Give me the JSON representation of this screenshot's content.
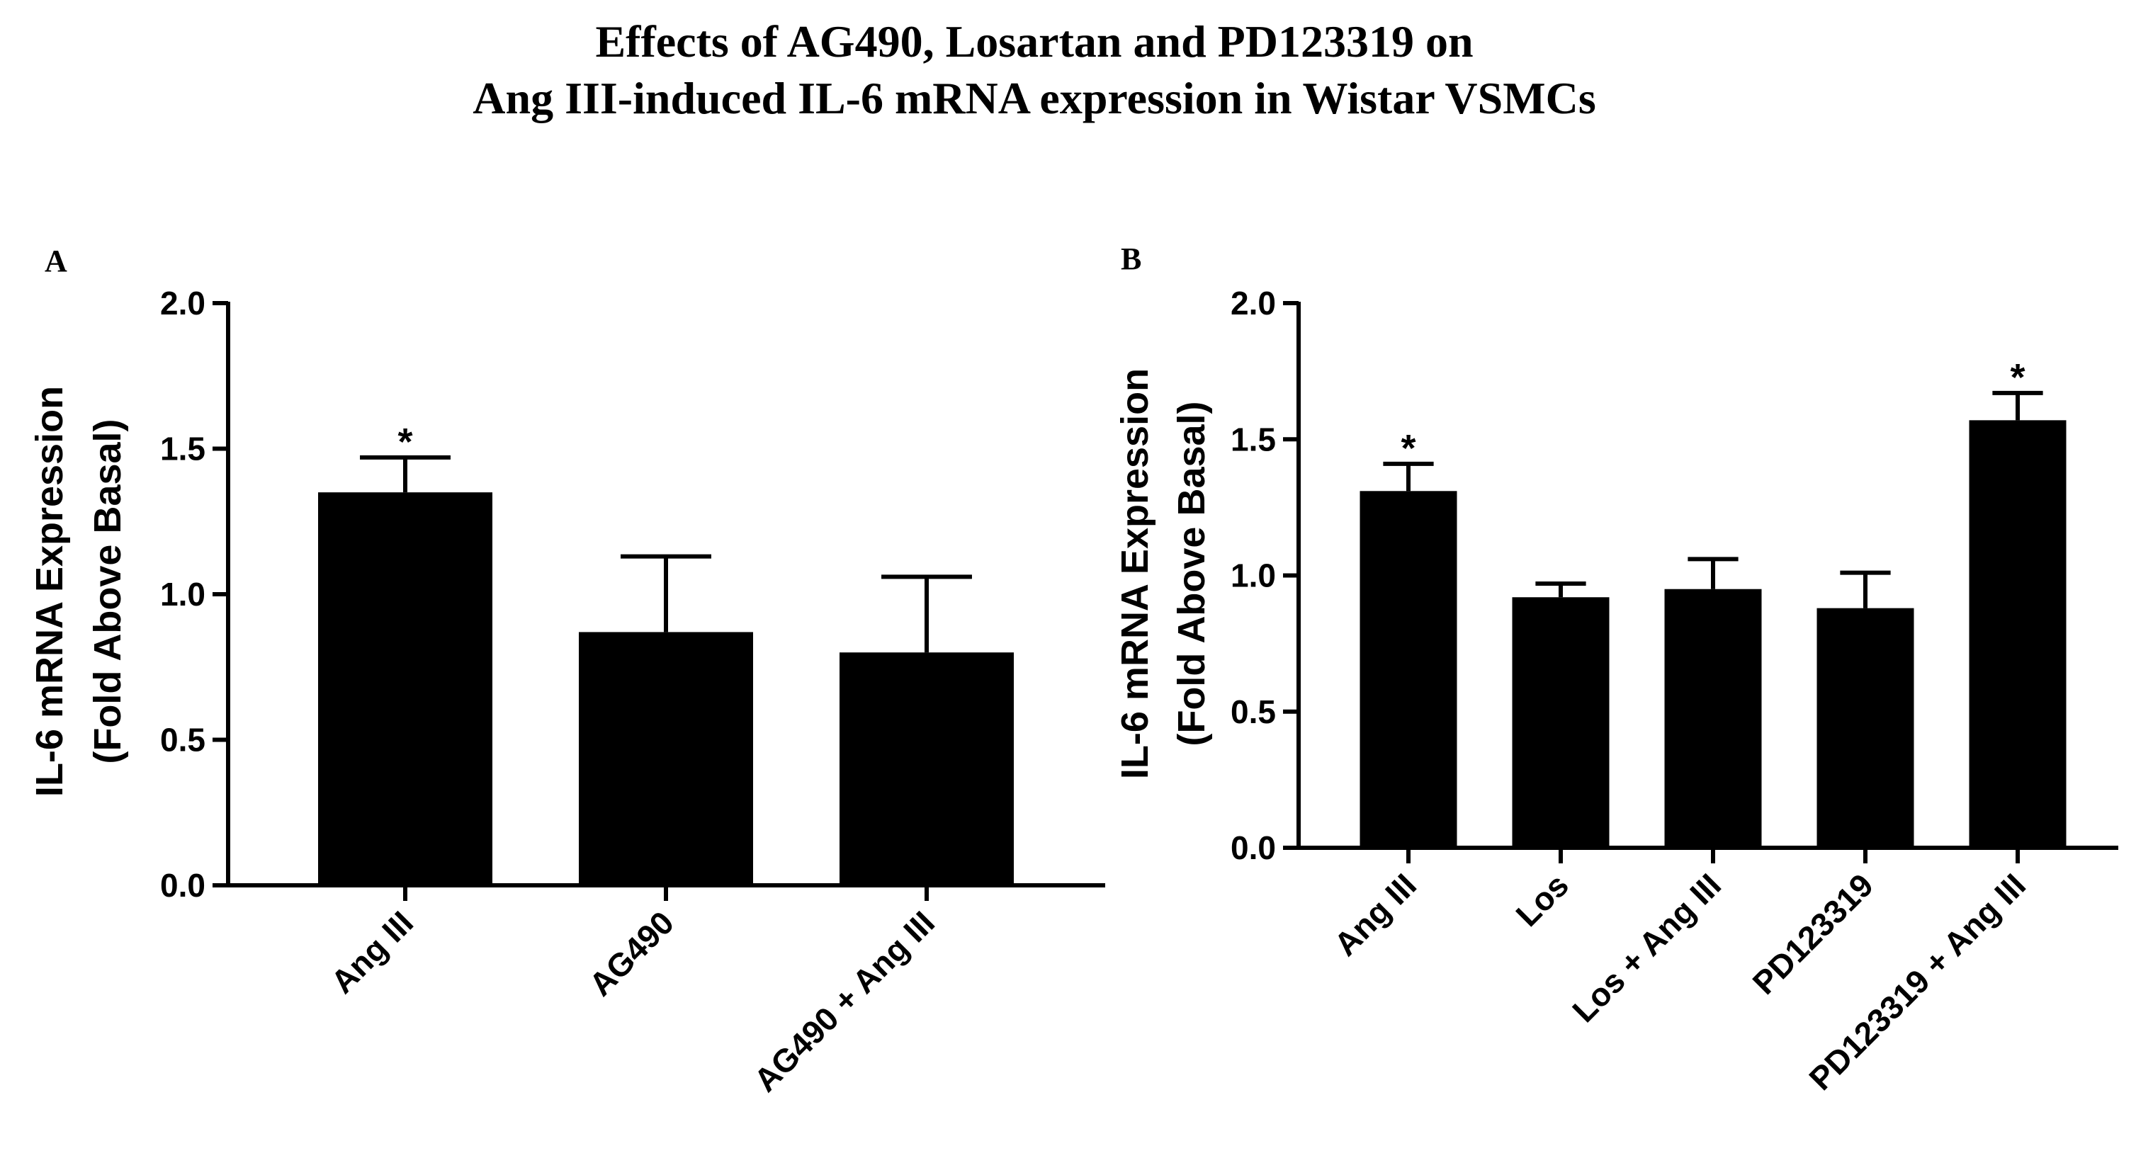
{
  "figure": {
    "title_line1": "Effects of AG490, Losartan and PD123319 on",
    "title_line2": "Ang III-induced IL-6 mRNA expression in Wistar VSMCs"
  },
  "chart_data": [
    {
      "panel": "A",
      "type": "bar",
      "ylabel_line1": "IL-6 mRNA Expression",
      "ylabel_line2": "(Fold Above Basal)",
      "xlabel": "",
      "ylim": [
        0,
        2.0
      ],
      "yticks": [
        0.0,
        0.5,
        1.0,
        1.5,
        2.0
      ],
      "ytick_labels": [
        "0.0",
        "0.5",
        "1.0",
        "1.5",
        "2.0"
      ],
      "categories": [
        "Ang III",
        "AG490",
        "AG490 + Ang III"
      ],
      "values": [
        1.35,
        0.87,
        0.8
      ],
      "errors": [
        0.12,
        0.26,
        0.26
      ],
      "significance": [
        "*",
        "",
        ""
      ],
      "bar_color": "#000000"
    },
    {
      "panel": "B",
      "type": "bar",
      "ylabel_line1": "IL-6 mRNA Expression",
      "ylabel_line2": "(Fold Above Basal)",
      "xlabel": "",
      "ylim": [
        0,
        2.0
      ],
      "yticks": [
        0.0,
        0.5,
        1.0,
        1.5,
        2.0
      ],
      "ytick_labels": [
        "0.0",
        "0.5",
        "1.0",
        "1.5",
        "2.0"
      ],
      "categories": [
        "Ang III",
        "Los",
        "Los + Ang III",
        "PD123319",
        "PD123319 + Ang III"
      ],
      "values": [
        1.31,
        0.92,
        0.95,
        0.88,
        1.57
      ],
      "errors": [
        0.1,
        0.05,
        0.11,
        0.13,
        0.1
      ],
      "significance": [
        "*",
        "",
        "",
        "",
        "*"
      ],
      "bar_color": "#000000"
    }
  ]
}
